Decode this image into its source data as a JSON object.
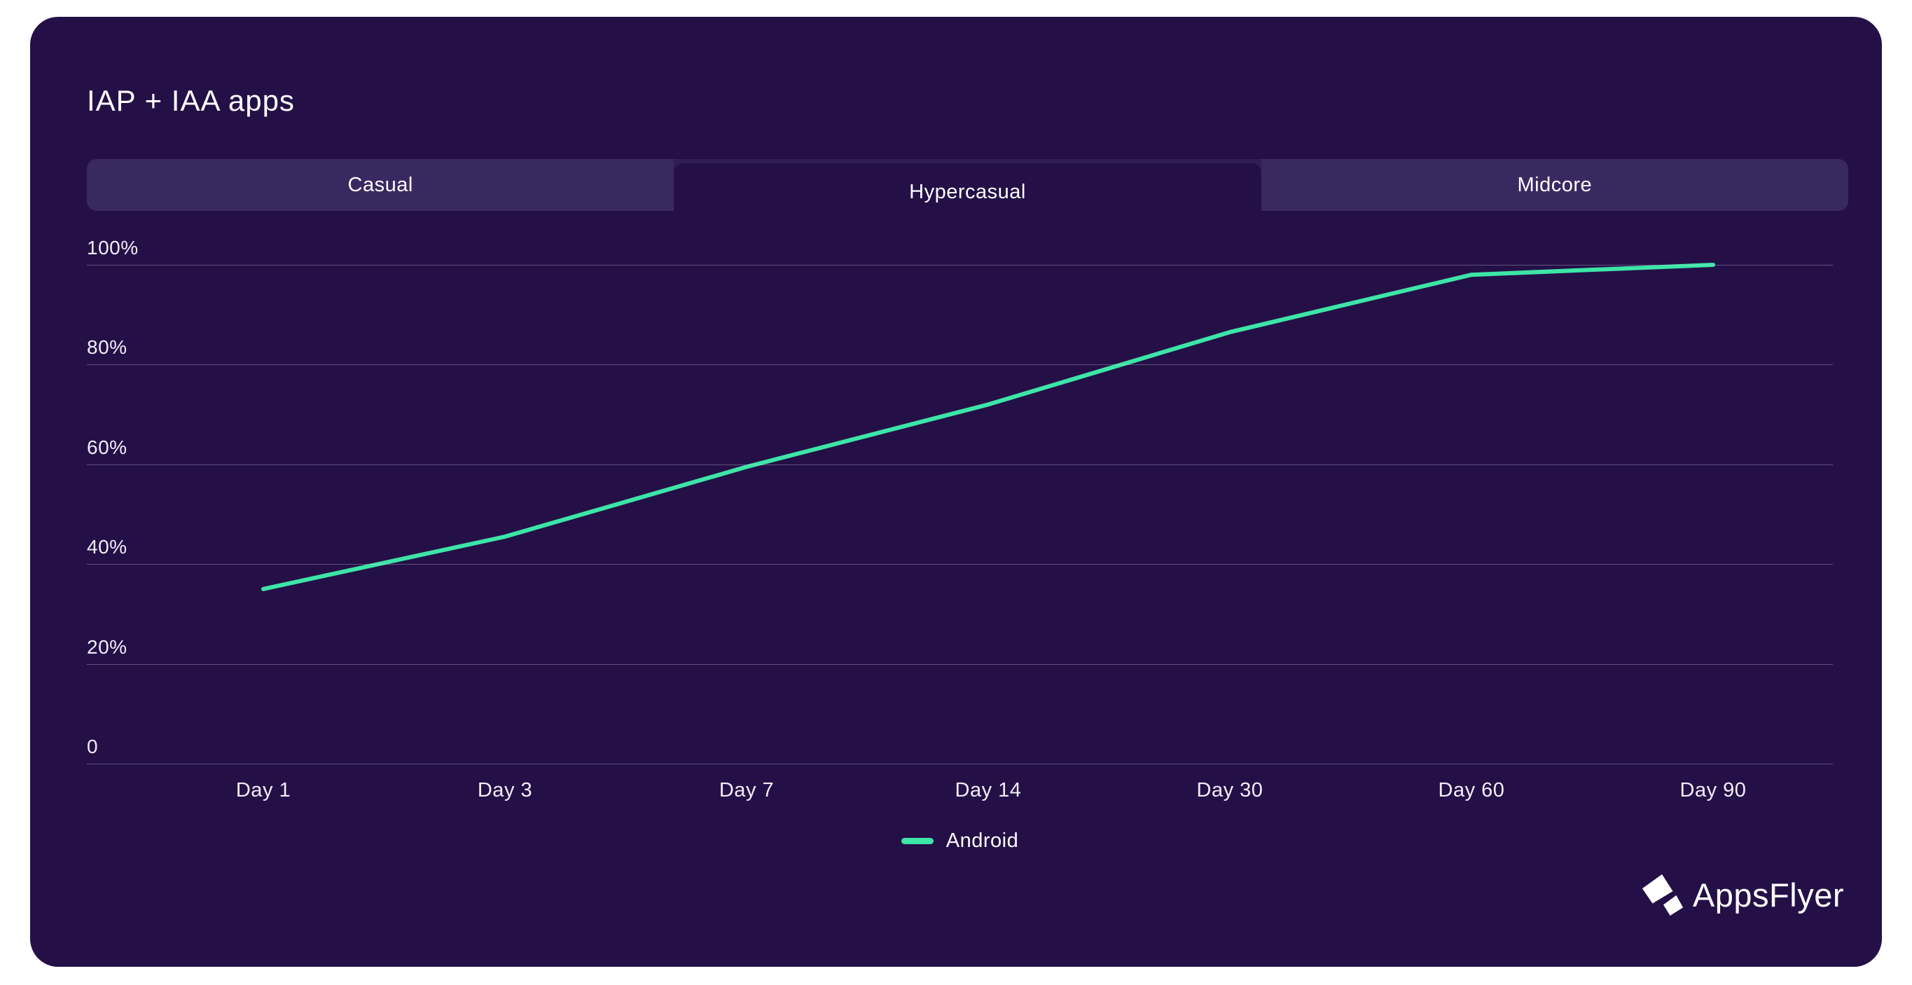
{
  "card": {
    "title": "IAP + IAA apps"
  },
  "tabs": [
    {
      "label": "Casual",
      "active": false
    },
    {
      "label": "Hypercasual",
      "active": true
    },
    {
      "label": "Midcore",
      "active": false
    }
  ],
  "chart_data": {
    "type": "line",
    "title": "IAP + IAA apps",
    "categories": [
      "Day 1",
      "Day 3",
      "Day 7",
      "Day 14",
      "Day 30",
      "Day 60",
      "Day 90"
    ],
    "series": [
      {
        "name": "Android",
        "color": "#3DE5A7",
        "values": [
          35,
          45.5,
          59.5,
          72,
          86.5,
          98,
          100
        ]
      }
    ],
    "xlabel": "",
    "ylabel": "",
    "ylim": [
      0,
      100
    ],
    "yticks": [
      {
        "label": "100%",
        "value": 100
      },
      {
        "label": "80%",
        "value": 80
      },
      {
        "label": "60%",
        "value": 60
      },
      {
        "label": "40%",
        "value": 40
      },
      {
        "label": "20%",
        "value": 20
      },
      {
        "label": "0",
        "value": 0
      }
    ],
    "grid": "horizontal",
    "legend_position": "bottom-center"
  },
  "legend": {
    "items": [
      {
        "label": "Android",
        "color": "#3DE5A7"
      }
    ]
  },
  "footer": {
    "logo_text": "AppsFlyer"
  },
  "colors": {
    "page_bg": "#FFFFFF",
    "card_bg": "#241047",
    "tab_bar_bg": "#2F1E52",
    "tab_inactive_bg": "#3A2961",
    "line": "#3DE5A7",
    "gridline": "rgba(235,230,245,0.30)",
    "text": "#FFFFFF"
  }
}
